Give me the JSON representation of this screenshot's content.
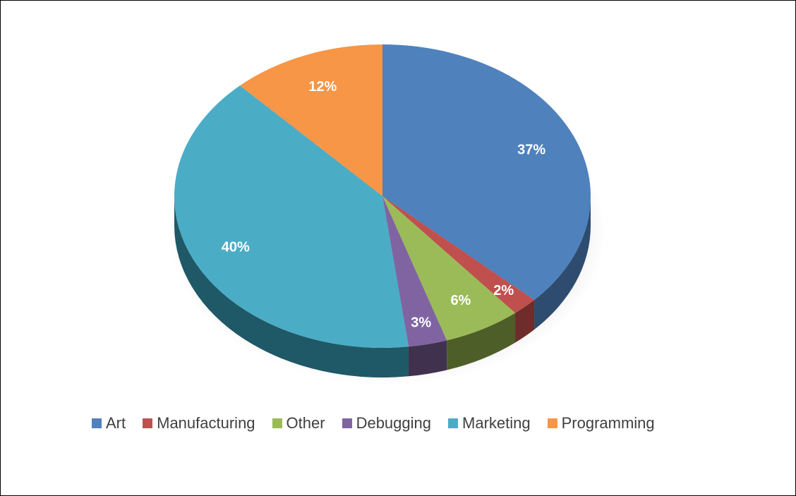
{
  "chart_data": {
    "type": "pie",
    "title": "",
    "three_d": true,
    "legend_position": "bottom",
    "data_labels": "percent",
    "slices": [
      {
        "label": "Art",
        "value": 37,
        "display": "37%",
        "color": "#4F81BD",
        "side_color": "#2E4C70"
      },
      {
        "label": "Manufacturing",
        "value": 2,
        "display": "2%",
        "color": "#C0504D",
        "side_color": "#6E2C2A"
      },
      {
        "label": "Other",
        "value": 6,
        "display": "6%",
        "color": "#9BBB59",
        "side_color": "#4E5E28"
      },
      {
        "label": "Debugging",
        "value": 3,
        "display": "3%",
        "color": "#8064A2",
        "side_color": "#40314F"
      },
      {
        "label": "Marketing",
        "value": 40,
        "display": "40%",
        "color": "#4BACC6",
        "side_color": "#1F5866"
      },
      {
        "label": "Programming",
        "value": 12,
        "display": "12%",
        "color": "#F79646",
        "side_color": "#8A4F20"
      }
    ]
  },
  "legend": {
    "items": [
      {
        "label": "Art",
        "color": "#4F81BD"
      },
      {
        "label": "Manufacturing",
        "color": "#C0504D"
      },
      {
        "label": "Other",
        "color": "#9BBB59"
      },
      {
        "label": "Debugging",
        "color": "#8064A2"
      },
      {
        "label": "Marketing",
        "color": "#4BACC6"
      },
      {
        "label": "Programming",
        "color": "#F79646"
      }
    ]
  }
}
